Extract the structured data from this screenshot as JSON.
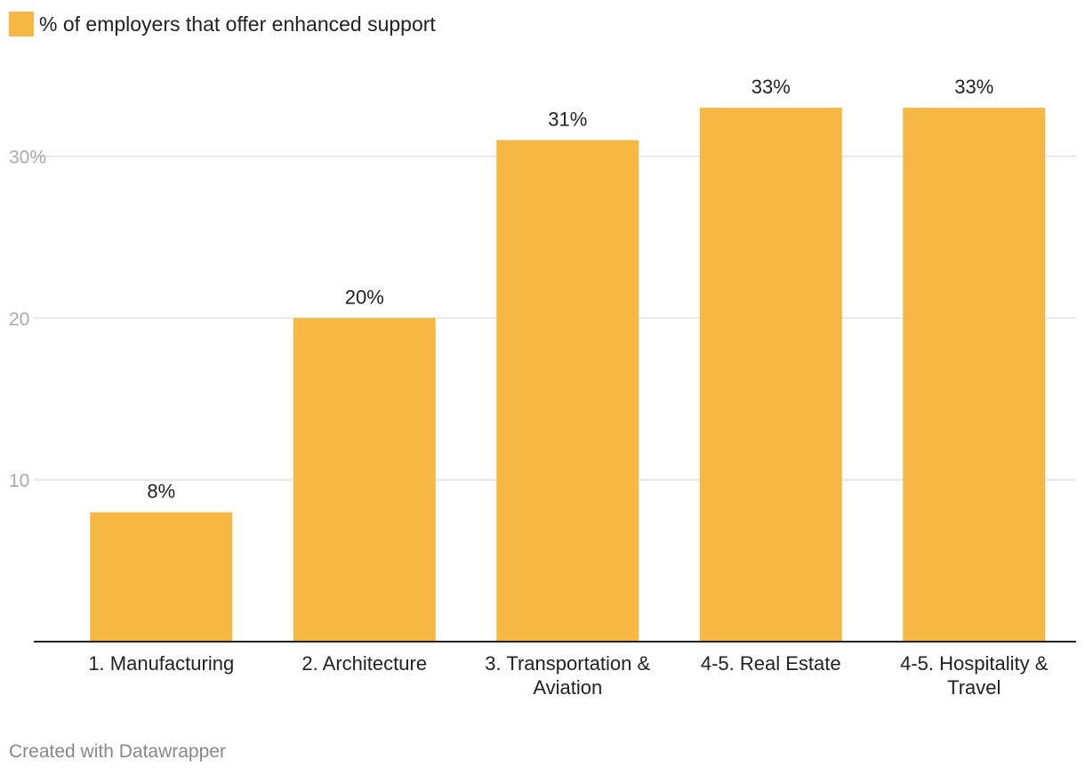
{
  "legend": {
    "label": "% of employers that offer enhanced support",
    "color": "#f7b843"
  },
  "footer": {
    "credit": "Created with Datawrapper"
  },
  "chart_data": {
    "type": "bar",
    "categories": [
      "1. Manufacturing",
      "2. Architecture",
      "3. Transportation & Aviation",
      "4-5. Real Estate",
      "4-5. Hospitality & Travel"
    ],
    "category_lines": [
      [
        "1. Manufacturing"
      ],
      [
        "2. Architecture"
      ],
      [
        "3. Transportation &",
        "Aviation"
      ],
      [
        "4-5. Real Estate"
      ],
      [
        "4-5. Hospitality &",
        "Travel"
      ]
    ],
    "series": [
      {
        "name": "% of employers that offer enhanced support",
        "values": [
          8,
          20,
          31,
          33,
          33
        ],
        "value_labels": [
          "8%",
          "20%",
          "31%",
          "33%",
          "33%"
        ],
        "color": "#f7b843"
      }
    ],
    "y_ticks": [
      10,
      20,
      30
    ],
    "y_tick_labels": [
      "10",
      "20",
      "30%"
    ],
    "ylim": [
      0,
      33
    ],
    "grid": true,
    "legend_position": "top-left",
    "colors": {
      "bar": "#f7b843",
      "grid": "#e2e2e2",
      "axis": "#222222",
      "tick_label": "#aaaaaa",
      "text": "#222222"
    }
  }
}
